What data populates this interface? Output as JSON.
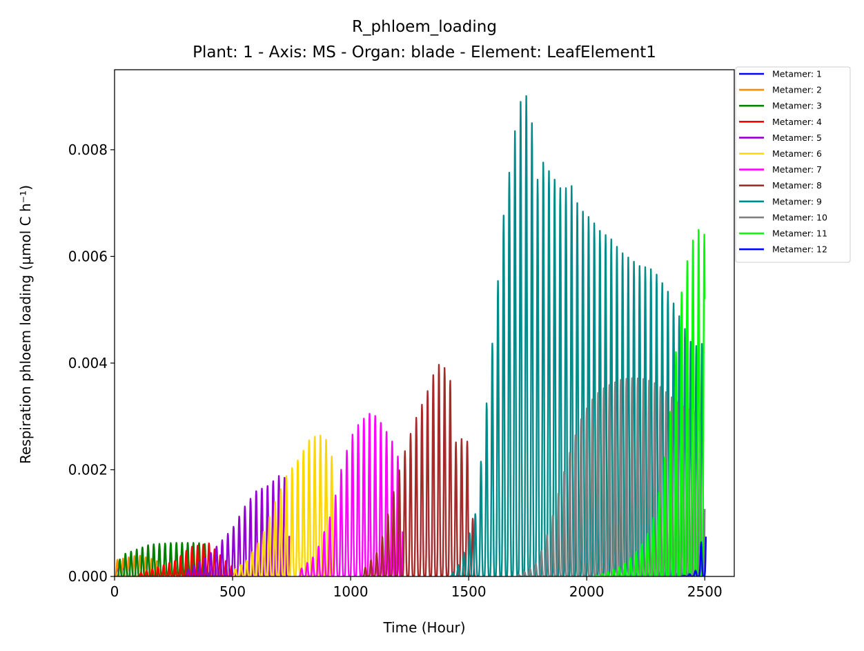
{
  "chart_data": {
    "type": "line",
    "title": "R_phloem_loading",
    "subtitle": "Plant: 1 - Axis: MS - Organ: blade - Element: LeafElement1",
    "xlabel": "Time (Hour)",
    "ylabel": "Respiration phloem loading (µmol C h⁻¹)",
    "xlim": [
      0,
      2625
    ],
    "ylim": [
      0,
      0.0095
    ],
    "xticks": [
      0,
      500,
      1000,
      1500,
      2000,
      2500
    ],
    "yticks": [
      0,
      0.002,
      0.004,
      0.006,
      0.008
    ],
    "xtick_labels": [
      "0",
      "500",
      "1000",
      "1500",
      "2000",
      "2500"
    ],
    "ytick_labels": [
      "0.000",
      "0.002",
      "0.004",
      "0.006",
      "0.008"
    ],
    "grid": false,
    "legend_position": "outside-top-right",
    "period_hours": 24,
    "series": [
      {
        "name": "Metamer: 1",
        "color": "#0000ff",
        "start": 0,
        "end": 60,
        "peaks": [
          [
            0,
            0.0002
          ],
          [
            60,
            0.0003
          ]
        ]
      },
      {
        "name": "Metamer: 2",
        "color": "#ff8c00",
        "start": 0,
        "end": 180,
        "peaks": [
          [
            0,
            0.0003
          ],
          [
            100,
            0.0004
          ],
          [
            180,
            0.0003
          ]
        ]
      },
      {
        "name": "Metamer: 3",
        "color": "#008000",
        "start": 10,
        "end": 400,
        "peaks": [
          [
            10,
            0.0002
          ],
          [
            30,
            0.0004
          ],
          [
            60,
            0.00045
          ],
          [
            150,
            0.0006
          ],
          [
            250,
            0.00063
          ],
          [
            350,
            0.00063
          ],
          [
            400,
            0.0006
          ]
        ]
      },
      {
        "name": "Metamer: 4",
        "color": "#ff0000",
        "start": 100,
        "end": 520,
        "peaks": [
          [
            100,
            5e-05
          ],
          [
            200,
            0.0002
          ],
          [
            260,
            0.0003
          ],
          [
            320,
            0.00055
          ],
          [
            400,
            0.00062
          ],
          [
            470,
            0.0003
          ],
          [
            520,
            0.0001
          ]
        ]
      },
      {
        "name": "Metamer: 5",
        "color": "#9400d3",
        "start": 300,
        "end": 740,
        "peaks": [
          [
            300,
            0.0001
          ],
          [
            400,
            0.0004
          ],
          [
            450,
            0.00065
          ],
          [
            500,
            0.0009
          ],
          [
            550,
            0.0013
          ],
          [
            600,
            0.0016
          ],
          [
            650,
            0.0017
          ],
          [
            700,
            0.0019
          ],
          [
            740,
            0.0018
          ]
        ]
      },
      {
        "name": "Metamer: 6",
        "color": "#ffd700",
        "start": 500,
        "end": 930,
        "peaks": [
          [
            500,
            0.0001
          ],
          [
            560,
            0.0003
          ],
          [
            620,
            0.0007
          ],
          [
            680,
            0.0014
          ],
          [
            730,
            0.0019
          ],
          [
            780,
            0.0022
          ],
          [
            830,
            0.0026
          ],
          [
            870,
            0.00265
          ],
          [
            900,
            0.00255
          ],
          [
            930,
            0.0021
          ]
        ]
      },
      {
        "name": "Metamer: 7",
        "color": "#ff00ff",
        "start": 780,
        "end": 1220,
        "peaks": [
          [
            780,
            0.0001
          ],
          [
            850,
            0.0004
          ],
          [
            920,
            0.0012
          ],
          [
            960,
            0.002
          ],
          [
            1000,
            0.0026
          ],
          [
            1040,
            0.0029
          ],
          [
            1080,
            0.00305
          ],
          [
            1110,
            0.003
          ],
          [
            1140,
            0.0028
          ],
          [
            1180,
            0.0025
          ],
          [
            1220,
            0.002
          ]
        ]
      },
      {
        "name": "Metamer: 8",
        "color": "#a52a2a",
        "start": 1050,
        "end": 1530,
        "peaks": [
          [
            1050,
            0.0001
          ],
          [
            1120,
            0.0005
          ],
          [
            1160,
            0.0012
          ],
          [
            1200,
            0.0019
          ],
          [
            1240,
            0.0025
          ],
          [
            1280,
            0.003
          ],
          [
            1320,
            0.0034
          ],
          [
            1360,
            0.0039
          ],
          [
            1380,
            0.004
          ],
          [
            1420,
            0.0038
          ],
          [
            1440,
            0.0025
          ],
          [
            1480,
            0.0026
          ],
          [
            1500,
            0.0025
          ],
          [
            1530,
            0.0001
          ]
        ]
      },
      {
        "name": "Metamer: 9",
        "color": "#008b8b",
        "start": 1420,
        "end": 2500,
        "peaks": [
          [
            1420,
            0.0
          ],
          [
            1470,
            0.0003
          ],
          [
            1530,
            0.0012
          ],
          [
            1560,
            0.0025
          ],
          [
            1590,
            0.0039
          ],
          [
            1620,
            0.0053
          ],
          [
            1640,
            0.0065
          ],
          [
            1670,
            0.0075
          ],
          [
            1690,
            0.0082
          ],
          [
            1710,
            0.0087
          ],
          [
            1730,
            0.0091
          ],
          [
            1760,
            0.0089
          ],
          [
            1790,
            0.0074
          ],
          [
            1810,
            0.0078
          ],
          [
            1840,
            0.0076
          ],
          [
            1870,
            0.0074
          ],
          [
            1900,
            0.0072
          ],
          [
            1930,
            0.0074
          ],
          [
            1960,
            0.007
          ],
          [
            1990,
            0.0068
          ],
          [
            2020,
            0.0067
          ],
          [
            2050,
            0.0065
          ],
          [
            2080,
            0.0064
          ],
          [
            2110,
            0.0063
          ],
          [
            2140,
            0.0061
          ],
          [
            2170,
            0.006
          ],
          [
            2200,
            0.0059
          ],
          [
            2230,
            0.0058
          ],
          [
            2260,
            0.0058
          ],
          [
            2290,
            0.0057
          ],
          [
            2320,
            0.0055
          ],
          [
            2350,
            0.0053
          ],
          [
            2380,
            0.005
          ],
          [
            2410,
            0.0047
          ],
          [
            2440,
            0.0044
          ],
          [
            2470,
            0.0043
          ],
          [
            2500,
            0.0044
          ]
        ]
      },
      {
        "name": "Metamer: 10",
        "color": "#808080",
        "start": 1700,
        "end": 2500,
        "peaks": [
          [
            1700,
            0.0
          ],
          [
            1780,
            0.0002
          ],
          [
            1820,
            0.0006
          ],
          [
            1860,
            0.0012
          ],
          [
            1900,
            0.0019
          ],
          [
            1940,
            0.0025
          ],
          [
            1980,
            0.003
          ],
          [
            2020,
            0.0033
          ],
          [
            2060,
            0.0035
          ],
          [
            2100,
            0.0036
          ],
          [
            2150,
            0.0037
          ],
          [
            2200,
            0.00372
          ],
          [
            2250,
            0.0037
          ],
          [
            2300,
            0.0036
          ],
          [
            2350,
            0.0034
          ],
          [
            2400,
            0.0032
          ],
          [
            2450,
            0.0031
          ],
          [
            2500,
            0.003
          ]
        ]
      },
      {
        "name": "Metamer: 11",
        "color": "#00ff00",
        "start": 2030,
        "end": 2500,
        "peaks": [
          [
            2030,
            0.0
          ],
          [
            2100,
            0.0001
          ],
          [
            2150,
            0.0002
          ],
          [
            2200,
            0.0004
          ],
          [
            2250,
            0.0007
          ],
          [
            2290,
            0.0012
          ],
          [
            2320,
            0.0019
          ],
          [
            2350,
            0.0029
          ],
          [
            2380,
            0.0043
          ],
          [
            2410,
            0.0057
          ],
          [
            2440,
            0.0061
          ],
          [
            2460,
            0.0065
          ],
          [
            2480,
            0.0065
          ],
          [
            2500,
            0.0064
          ]
        ]
      },
      {
        "name": "Metamer: 12",
        "color": "#0000ff",
        "start": 2400,
        "end": 2505,
        "peaks": [
          [
            2400,
            0.0
          ],
          [
            2440,
            5e-05
          ],
          [
            2460,
            0.0001
          ],
          [
            2480,
            0.0004
          ],
          [
            2500,
            0.0015
          ],
          [
            2505,
            0.0012
          ]
        ]
      }
    ]
  }
}
